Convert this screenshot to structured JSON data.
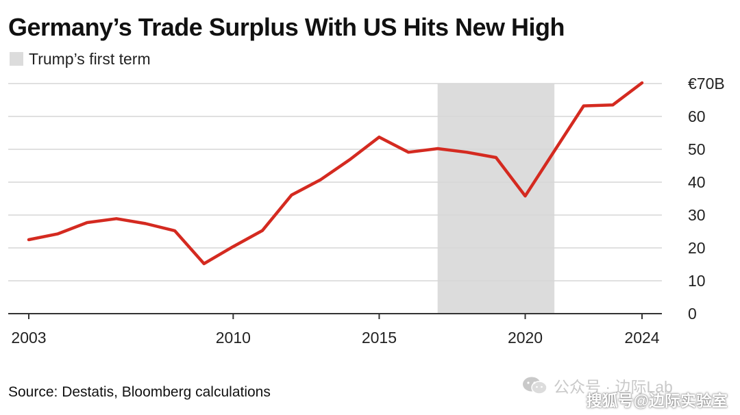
{
  "title": "Germany’s Trade Surplus With US Hits New High",
  "legend": {
    "label": "Trump’s first term",
    "swatch_color": "#dcdcdc"
  },
  "source": "Source: Destatis, Bloomberg calculations",
  "watermarks": {
    "top": "公众号 · 边际Lab",
    "bottom": "搜狐号@边际实验室"
  },
  "chart_data": {
    "type": "line",
    "title": "Germany’s Trade Surplus With US Hits New High",
    "xlabel": "",
    "ylabel": "",
    "xlim": [
      2003,
      2024
    ],
    "ylim": [
      0,
      70
    ],
    "x_ticks": [
      2003,
      2010,
      2015,
      2020,
      2024
    ],
    "y_ticks": [
      0,
      10,
      20,
      30,
      40,
      50,
      60,
      70
    ],
    "y_tick_labels": [
      "0",
      "10",
      "20",
      "30",
      "40",
      "50",
      "60",
      "€70B"
    ],
    "grid": true,
    "y_axis_position": "right",
    "shaded_region": {
      "label": "Trump’s first term",
      "x_start": 2017,
      "x_end": 2021,
      "color": "#dcdcdc"
    },
    "series": [
      {
        "color": "#d42a20",
        "points": [
          {
            "x": 2003,
            "y": 22.5
          },
          {
            "x": 2004,
            "y": 24.3
          },
          {
            "x": 2005,
            "y": 27.7
          },
          {
            "x": 2006,
            "y": 28.9
          },
          {
            "x": 2007,
            "y": 27.4
          },
          {
            "x": 2008,
            "y": 25.2
          },
          {
            "x": 2009,
            "y": 15.2
          },
          {
            "x": 2010,
            "y": 20.4
          },
          {
            "x": 2011,
            "y": 25.3
          },
          {
            "x": 2012,
            "y": 36.1
          },
          {
            "x": 2013,
            "y": 40.8
          },
          {
            "x": 2014,
            "y": 46.9
          },
          {
            "x": 2015,
            "y": 53.7
          },
          {
            "x": 2016,
            "y": 49.1
          },
          {
            "x": 2017,
            "y": 50.2
          },
          {
            "x": 2018,
            "y": 49.1
          },
          {
            "x": 2019,
            "y": 47.5
          },
          {
            "x": 2020,
            "y": 35.8
          },
          {
            "x": 2021,
            "y": 49.5
          },
          {
            "x": 2022,
            "y": 63.2
          },
          {
            "x": 2023,
            "y": 63.5
          },
          {
            "x": 2024,
            "y": 70.2
          }
        ]
      }
    ]
  }
}
